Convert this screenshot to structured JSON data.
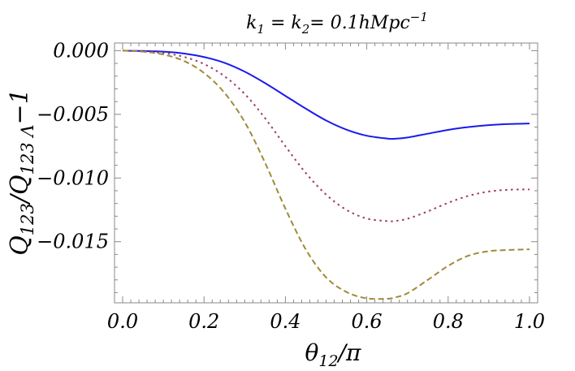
{
  "chart_data": {
    "type": "line",
    "title_parts": {
      "k1": "k",
      "k1_sub": "1",
      "eq1": " = ",
      "k2": "k",
      "k2_sub": "2",
      "eq2": "= 0.1hMpc",
      "exp": "−1"
    },
    "xlabel_parts": {
      "theta": "θ",
      "sub": "12",
      "rest": "/π"
    },
    "ylabel_parts": {
      "q1": "Q",
      "q1_sub": "123",
      "slash": "/",
      "q2": "Q",
      "q2_sub": "123 Λ",
      "rest": "−1"
    },
    "x_ticks": [
      "0.0",
      "0.2",
      "0.4",
      "0.6",
      "0.8",
      "1.0"
    ],
    "x_tick_values": [
      0.0,
      0.2,
      0.4,
      0.6,
      0.8,
      1.0
    ],
    "y_ticks": [
      "0.000",
      "−0.005",
      "−0.010",
      "−0.015"
    ],
    "y_tick_values": [
      0.0,
      -0.005,
      -0.01,
      -0.015
    ],
    "xlim": [
      -0.02,
      1.02
    ],
    "ylim": [
      -0.0198,
      0.0006
    ],
    "grid": false,
    "x": [
      0.0,
      0.05,
      0.1,
      0.15,
      0.2,
      0.25,
      0.3,
      0.35,
      0.4,
      0.45,
      0.5,
      0.55,
      0.6,
      0.65,
      0.667,
      0.7,
      0.75,
      0.8,
      0.85,
      0.9,
      0.95,
      1.0
    ],
    "series": [
      {
        "color": "#1a1aee",
        "dash": "solid",
        "values": [
          0.0,
          -2e-05,
          -8e-05,
          -0.00022,
          -0.0005,
          -0.00095,
          -0.00165,
          -0.00255,
          -0.00355,
          -0.00455,
          -0.00548,
          -0.0062,
          -0.00668,
          -0.0069,
          -0.00692,
          -0.00682,
          -0.00652,
          -0.00622,
          -0.006,
          -0.00585,
          -0.00576,
          -0.00572
        ]
      },
      {
        "color": "#9b3a6e",
        "dash": "dotted",
        "values": [
          0.0,
          -5e-05,
          -0.00018,
          -0.00048,
          -0.00105,
          -0.002,
          -0.0034,
          -0.0053,
          -0.0075,
          -0.0096,
          -0.0113,
          -0.0125,
          -0.01318,
          -0.01338,
          -0.01338,
          -0.0132,
          -0.01262,
          -0.01195,
          -0.0114,
          -0.01106,
          -0.01092,
          -0.0109
        ]
      },
      {
        "color": "#a08a3a",
        "dash": "dashed",
        "values": [
          0.0,
          -8e-05,
          -0.0003,
          -0.0008,
          -0.00175,
          -0.0033,
          -0.0056,
          -0.0088,
          -0.0124,
          -0.0156,
          -0.0178,
          -0.01895,
          -0.01945,
          -0.01948,
          -0.0194,
          -0.01905,
          -0.018,
          -0.0169,
          -0.0161,
          -0.01575,
          -0.01565,
          -0.0156
        ]
      }
    ]
  }
}
